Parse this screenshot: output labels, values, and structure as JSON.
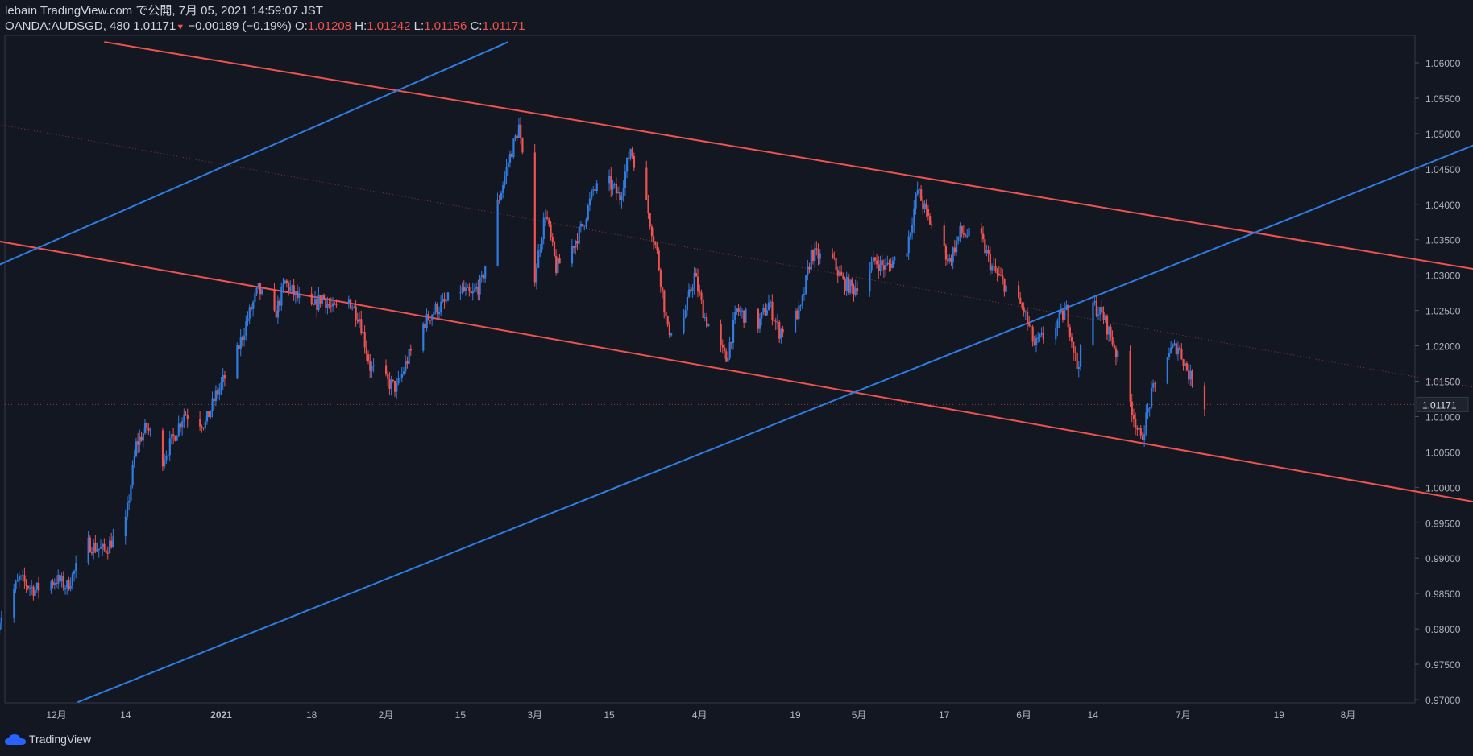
{
  "header": {
    "published_line": "lebain TradingView.com で公開, 7月 05, 2021 14:59:07 JST",
    "symbol": "OANDA:AUDSGD",
    "interval": "480",
    "last": "1.01171",
    "change": "−0.00189 (−0.19%)",
    "o_label": "O:",
    "o_value": "1.01208",
    "h_label": "H:",
    "h_value": "1.01242",
    "l_label": "L:",
    "l_value": "1.01156",
    "c_label": "C:",
    "c_value": "1.01171"
  },
  "footer": {
    "brand": "TradingView"
  },
  "colors": {
    "background": "#131722",
    "up": "#2f7de1",
    "down": "#ef5350",
    "blue_line": "#2f7de1",
    "red_line": "#ef5350",
    "text": "#d1d4dc",
    "axis_text": "#b2b5be"
  },
  "chart_data": {
    "type": "candlestick",
    "symbol": "OANDA:AUDSGD",
    "ylim": [
      0.97,
      1.0625
    ],
    "y_ticks": [
      "1.06000",
      "1.05500",
      "1.05000",
      "1.04500",
      "1.04000",
      "1.03500",
      "1.03000",
      "1.02500",
      "1.02000",
      "1.01500",
      "1.01000",
      "1.00500",
      "1.00000",
      "0.99500",
      "0.99000",
      "0.98500",
      "0.98000",
      "0.97500",
      "0.97000"
    ],
    "x_ticks": [
      "12月",
      "14",
      "2021",
      "18",
      "2月",
      "15",
      "3月",
      "15",
      "4月",
      "19",
      "5月",
      "17",
      "6月",
      "14",
      "7月",
      "19",
      "8月"
    ],
    "last_price_label": "1.01171",
    "close_path": [
      [
        "2020-11-20",
        0.981
      ],
      [
        "2020-11-24",
        0.987
      ],
      [
        "2020-11-27",
        0.9855
      ],
      [
        "2020-12-01",
        0.987
      ],
      [
        "2020-12-03",
        0.986
      ],
      [
        "2020-12-07",
        0.992
      ],
      [
        "2020-12-10",
        0.991
      ],
      [
        "2020-12-14",
        0.995
      ],
      [
        "2020-12-16",
        1.006
      ],
      [
        "2020-12-18",
        1.0085
      ],
      [
        "2020-12-21",
        1.004
      ],
      [
        "2020-12-23",
        1.007
      ],
      [
        "2020-12-25",
        1.0105
      ],
      [
        "2020-12-29",
        1.009
      ],
      [
        "2020-12-31",
        1.013
      ],
      [
        "2021-01-04",
        1.019
      ],
      [
        "2021-01-06",
        1.024
      ],
      [
        "2021-01-08",
        1.028
      ],
      [
        "2021-01-11",
        1.024
      ],
      [
        "2021-01-13",
        1.029
      ],
      [
        "2021-01-15",
        1.027
      ],
      [
        "2021-01-18",
        1.025
      ],
      [
        "2021-01-20",
        1.027
      ],
      [
        "2021-01-22",
        1.025
      ],
      [
        "2021-01-25",
        1.0265
      ],
      [
        "2021-01-27",
        1.024
      ],
      [
        "2021-01-29",
        1.017
      ],
      [
        "2021-02-01",
        1.015
      ],
      [
        "2021-02-03",
        1.014
      ],
      [
        "2021-02-05",
        1.018
      ],
      [
        "2021-02-08",
        1.023
      ],
      [
        "2021-02-10",
        1.025
      ],
      [
        "2021-02-12",
        1.026
      ],
      [
        "2021-02-15",
        1.028
      ],
      [
        "2021-02-17",
        1.027
      ],
      [
        "2021-02-19",
        1.029
      ],
      [
        "2021-02-22",
        1.04
      ],
      [
        "2021-02-24",
        1.046
      ],
      [
        "2021-02-26",
        1.051
      ],
      [
        "2021-03-01",
        1.03
      ],
      [
        "2021-03-03",
        1.039
      ],
      [
        "2021-03-05",
        1.031
      ],
      [
        "2021-03-08",
        1.034
      ],
      [
        "2021-03-10",
        1.037
      ],
      [
        "2021-03-12",
        1.042
      ],
      [
        "2021-03-15",
        1.043
      ],
      [
        "2021-03-17",
        1.041
      ],
      [
        "2021-03-19",
        1.048
      ],
      [
        "2021-03-22",
        1.04
      ],
      [
        "2021-03-24",
        1.033
      ],
      [
        "2021-03-26",
        1.022
      ],
      [
        "2021-03-29",
        1.024
      ],
      [
        "2021-03-31",
        1.03
      ],
      [
        "2021-04-02",
        1.024
      ],
      [
        "2021-04-06",
        1.018
      ],
      [
        "2021-04-08",
        1.025
      ],
      [
        "2021-04-12",
        1.023
      ],
      [
        "2021-04-14",
        1.026
      ],
      [
        "2021-04-16",
        1.022
      ],
      [
        "2021-04-20",
        1.025
      ],
      [
        "2021-04-22",
        1.033
      ],
      [
        "2021-04-26",
        1.032
      ],
      [
        "2021-04-28",
        1.029
      ],
      [
        "2021-04-30",
        1.028
      ],
      [
        "2021-05-04",
        1.032
      ],
      [
        "2021-05-06",
        1.031
      ],
      [
        "2021-05-10",
        1.034
      ],
      [
        "2021-05-12",
        1.042
      ],
      [
        "2021-05-14",
        1.038
      ],
      [
        "2021-05-18",
        1.032
      ],
      [
        "2021-05-20",
        1.036
      ],
      [
        "2021-05-24",
        1.035
      ],
      [
        "2021-05-26",
        1.031
      ],
      [
        "2021-05-28",
        1.029
      ],
      [
        "2021-06-01",
        1.025
      ],
      [
        "2021-06-03",
        1.02
      ],
      [
        "2021-06-07",
        1.023
      ],
      [
        "2021-06-09",
        1.025
      ],
      [
        "2021-06-11",
        1.017
      ],
      [
        "2021-06-14",
        1.026
      ],
      [
        "2021-06-16",
        1.024
      ],
      [
        "2021-06-18",
        1.02
      ],
      [
        "2021-06-21",
        1.012
      ],
      [
        "2021-06-23",
        1.0065
      ],
      [
        "2021-06-25",
        1.013
      ],
      [
        "2021-06-28",
        1.019
      ],
      [
        "2021-06-30",
        1.02
      ],
      [
        "2021-07-02",
        1.016
      ],
      [
        "2021-07-05",
        1.0117
      ]
    ],
    "trend_lines": [
      {
        "color": "red",
        "style": "solid",
        "points": [
          [
            "2020-11-16",
            1.03533
          ],
          [
            "2021-08-31",
            0.99713
          ]
        ]
      },
      {
        "color": "red",
        "style": "solid",
        "points": [
          [
            "2020-12-10",
            1.06295
          ],
          [
            "2021-08-31",
            1.03006
          ]
        ]
      },
      {
        "color": "red",
        "style": "dotted",
        "points": [
          [
            "2020-11-16",
            1.05184
          ],
          [
            "2021-08-31",
            1.0133
          ]
        ]
      },
      {
        "color": "blue",
        "style": "solid",
        "points": [
          [
            "2020-11-16",
            1.03006
          ],
          [
            "2021-02-24",
            1.06295
          ]
        ]
      },
      {
        "color": "blue",
        "style": "solid",
        "points": [
          [
            "2020-12-05",
            0.96964
          ],
          [
            "2021-08-31",
            1.05026
          ]
        ]
      }
    ]
  }
}
